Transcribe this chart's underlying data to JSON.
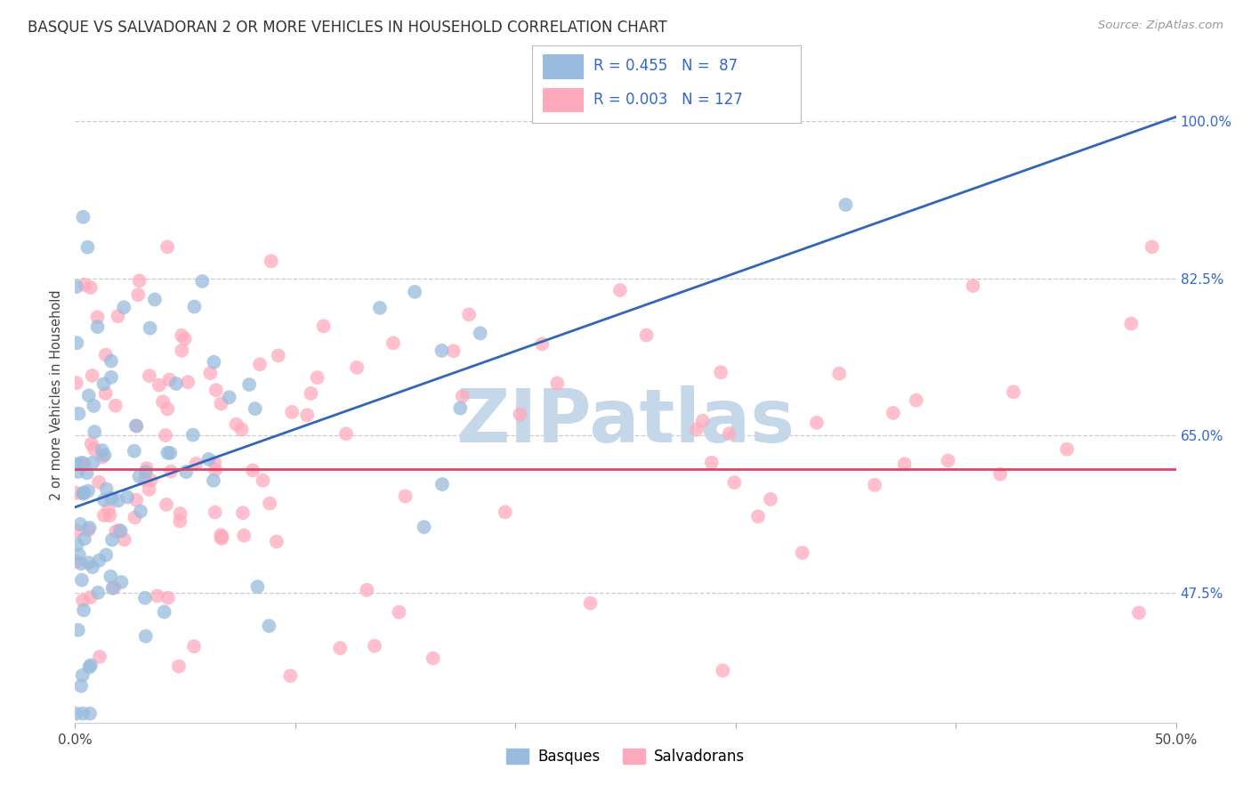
{
  "title": "BASQUE VS SALVADORAN 2 OR MORE VEHICLES IN HOUSEHOLD CORRELATION CHART",
  "source": "Source: ZipAtlas.com",
  "ylabel": "2 or more Vehicles in Household",
  "xlim": [
    0.0,
    50.0
  ],
  "ylim": [
    33.0,
    106.0
  ],
  "yticks": [
    47.5,
    65.0,
    82.5,
    100.0
  ],
  "xticks": [
    0.0,
    10.0,
    20.0,
    30.0,
    40.0,
    50.0
  ],
  "xtick_labels_show": [
    "0.0%",
    "",
    "",
    "",
    "",
    "50.0%"
  ],
  "ytick_labels": [
    "47.5%",
    "65.0%",
    "82.5%",
    "100.0%"
  ],
  "blue_color": "#99BBDD",
  "blue_color_dark": "#7799CC",
  "pink_color": "#FFAABC",
  "pink_color_dark": "#FF88AA",
  "blue_line_color": "#3366BB",
  "pink_line_color": "#DD4466",
  "watermark": "ZIPatlas",
  "watermark_color": "#C5D8EA",
  "blue_r": "0.455",
  "blue_n": " 87",
  "pink_r": "0.003",
  "pink_n": "127",
  "blue_line_x": [
    0.0,
    50.0
  ],
  "blue_line_y": [
    57.0,
    100.5
  ],
  "pink_line_y": 61.2,
  "seed": 42
}
